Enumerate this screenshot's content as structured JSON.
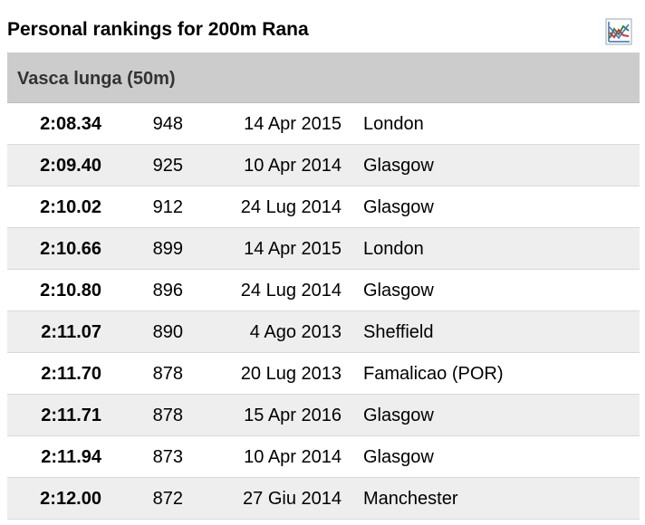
{
  "header": {
    "title": "Personal rankings for 200m Rana",
    "chart_icon": "line-chart-icon"
  },
  "section": {
    "label": "Vasca lunga (50m)"
  },
  "rows": [
    {
      "time": "2:08.34",
      "points": "948",
      "date": "14 Apr 2015",
      "city": "London"
    },
    {
      "time": "2:09.40",
      "points": "925",
      "date": "10 Apr 2014",
      "city": "Glasgow"
    },
    {
      "time": "2:10.02",
      "points": "912",
      "date": "24 Lug 2014",
      "city": "Glasgow"
    },
    {
      "time": "2:10.66",
      "points": "899",
      "date": "14 Apr 2015",
      "city": "London"
    },
    {
      "time": "2:10.80",
      "points": "896",
      "date": "24 Lug 2014",
      "city": "Glasgow"
    },
    {
      "time": "2:11.07",
      "points": "890",
      "date": "4 Ago 2013",
      "city": "Sheffield"
    },
    {
      "time": "2:11.70",
      "points": "878",
      "date": "20 Lug 2013",
      "city": "Famalicao (POR)"
    },
    {
      "time": "2:11.71",
      "points": "878",
      "date": "15 Apr 2016",
      "city": "Glasgow"
    },
    {
      "time": "2:11.94",
      "points": "873",
      "date": "10 Apr 2014",
      "city": "Glasgow"
    },
    {
      "time": "2:12.00",
      "points": "872",
      "date": "27 Giu 2014",
      "city": "Manchester"
    }
  ],
  "colors": {
    "header_bg": "#cccccc",
    "row_alt_bg": "#eeeeee",
    "row_bg": "#ffffff"
  }
}
